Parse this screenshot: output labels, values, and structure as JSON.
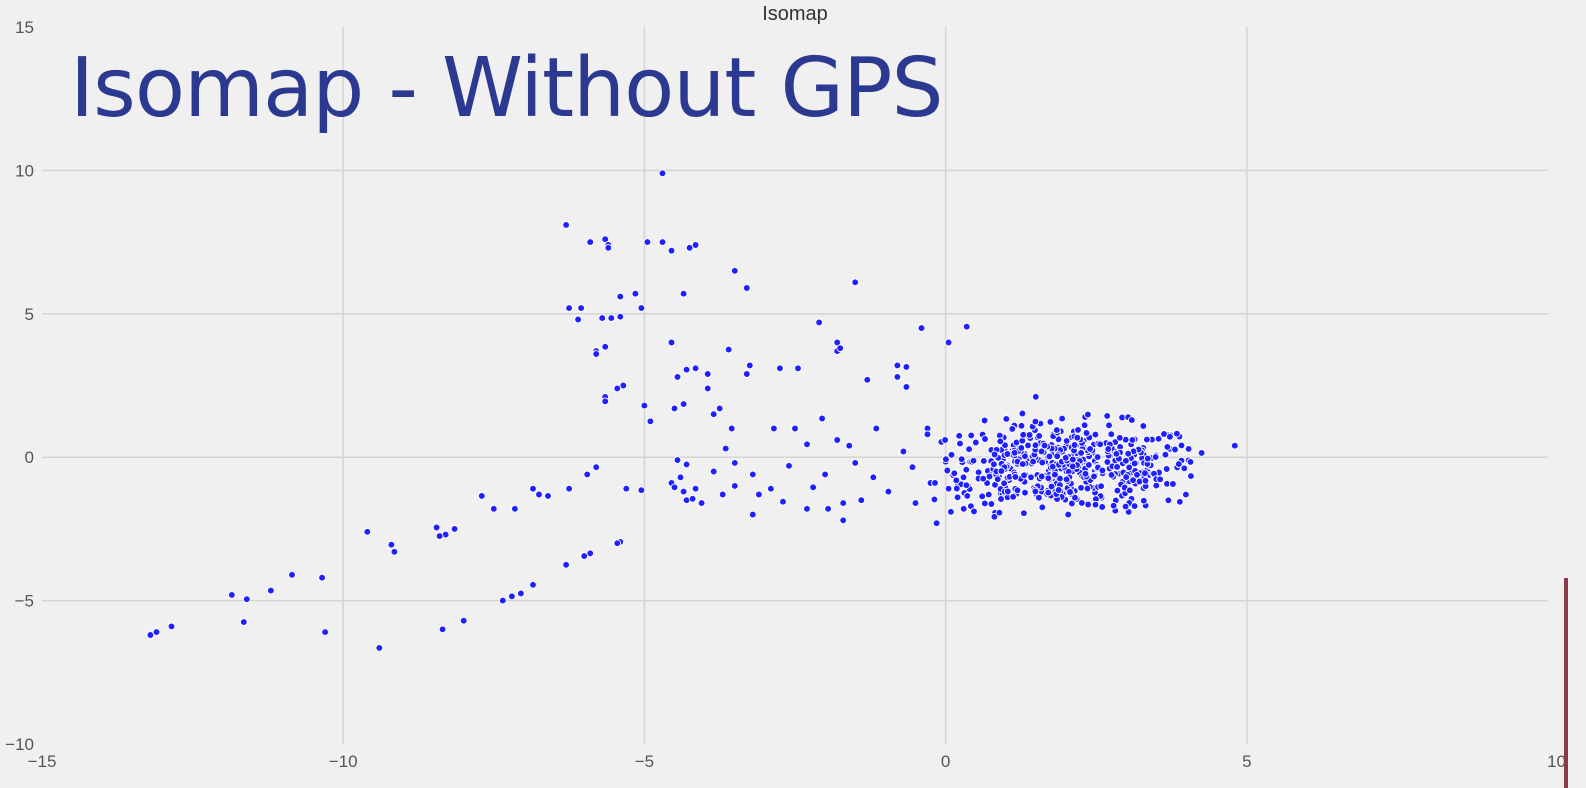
{
  "slide": {
    "title": "Isomap - Without GPS",
    "title_color": "#2b3990"
  },
  "colors": {
    "background": "#f0f0f0",
    "grid": "#d4d4d4",
    "point_fill": "#1f1fff",
    "point_edge": "#ffffff",
    "accent": "#8a3a4a"
  },
  "chart_data": {
    "type": "scatter",
    "title": "Isomap",
    "xlabel": "",
    "ylabel": "",
    "xlim": [
      -15,
      10
    ],
    "ylim": [
      -10,
      15
    ],
    "xticks": [
      -15,
      -10,
      -5,
      0,
      5,
      10
    ],
    "yticks": [
      -10,
      -5,
      0,
      5,
      10,
      15
    ],
    "grid": true,
    "outliers": [
      [
        -4.7,
        9.9
      ],
      [
        -6.3,
        8.1
      ],
      [
        -5.9,
        7.5
      ],
      [
        -5.65,
        7.6
      ],
      [
        -5.6,
        7.4
      ],
      [
        -5.6,
        7.3
      ],
      [
        -4.95,
        7.5
      ],
      [
        -4.7,
        7.5
      ],
      [
        -4.55,
        7.2
      ],
      [
        -4.25,
        7.3
      ],
      [
        -4.15,
        7.4
      ],
      [
        -3.5,
        6.5
      ],
      [
        -3.3,
        5.9
      ],
      [
        -1.5,
        6.1
      ],
      [
        -4.35,
        5.7
      ],
      [
        -5.15,
        5.7
      ],
      [
        -5.4,
        5.6
      ],
      [
        -5.05,
        5.2
      ],
      [
        -6.25,
        5.2
      ],
      [
        -6.05,
        5.2
      ],
      [
        -5.4,
        4.9
      ],
      [
        -5.7,
        4.85
      ],
      [
        -5.55,
        4.85
      ],
      [
        -6.1,
        4.8
      ],
      [
        -2.1,
        4.7
      ],
      [
        -0.4,
        4.5
      ],
      [
        0.35,
        4.55
      ],
      [
        0.05,
        4.0
      ],
      [
        -1.8,
        4.0
      ],
      [
        -1.8,
        3.7
      ],
      [
        -1.75,
        3.8
      ],
      [
        -5.65,
        3.85
      ],
      [
        -5.8,
        3.7
      ],
      [
        -5.8,
        3.6
      ],
      [
        -4.55,
        4.0
      ],
      [
        -3.6,
        3.75
      ],
      [
        -3.25,
        3.2
      ],
      [
        -3.3,
        2.9
      ],
      [
        -2.75,
        3.1
      ],
      [
        -2.45,
        3.1
      ],
      [
        -0.8,
        3.2
      ],
      [
        -0.65,
        3.15
      ],
      [
        -1.3,
        2.7
      ],
      [
        -5.35,
        2.5
      ],
      [
        -5.45,
        2.4
      ],
      [
        -5.65,
        2.1
      ],
      [
        -5.65,
        1.95
      ],
      [
        -5.0,
        1.8
      ],
      [
        -4.9,
        1.25
      ],
      [
        -5.8,
        -0.35
      ],
      [
        -5.95,
        -0.6
      ],
      [
        -5.3,
        -1.1
      ],
      [
        -5.05,
        -1.15
      ],
      [
        -6.25,
        -1.1
      ],
      [
        -6.75,
        -1.3
      ],
      [
        -6.6,
        -1.35
      ],
      [
        -6.85,
        -1.1
      ],
      [
        -7.15,
        -1.8
      ],
      [
        -7.7,
        -1.35
      ],
      [
        -7.5,
        -1.8
      ],
      [
        -8.15,
        -2.5
      ],
      [
        -8.3,
        -2.7
      ],
      [
        -8.45,
        -2.45
      ],
      [
        -8.4,
        -2.75
      ],
      [
        -9.6,
        -2.6
      ],
      [
        -9.2,
        -3.05
      ],
      [
        -9.15,
        -3.3
      ],
      [
        -5.4,
        -2.95
      ],
      [
        -5.45,
        -3.0
      ],
      [
        -5.9,
        -3.35
      ],
      [
        -6.0,
        -3.45
      ],
      [
        -6.3,
        -3.75
      ],
      [
        -6.85,
        -4.45
      ],
      [
        -7.05,
        -4.75
      ],
      [
        -7.2,
        -4.85
      ],
      [
        -7.35,
        -5.0
      ],
      [
        -10.85,
        -4.1
      ],
      [
        -10.35,
        -4.2
      ],
      [
        -11.2,
        -4.65
      ],
      [
        -11.85,
        -4.8
      ],
      [
        -11.6,
        -4.95
      ],
      [
        -11.65,
        -5.75
      ],
      [
        -10.3,
        -6.1
      ],
      [
        -8.35,
        -6.0
      ],
      [
        -8.0,
        -5.7
      ],
      [
        -9.4,
        -6.65
      ],
      [
        -12.85,
        -5.9
      ],
      [
        -13.2,
        -6.2
      ],
      [
        -13.1,
        -6.1
      ],
      [
        4.8,
        0.4
      ],
      [
        4.25,
        0.15
      ],
      [
        -0.15,
        -2.3
      ],
      [
        0.05,
        -1.1
      ],
      [
        0.3,
        -1.8
      ],
      [
        -0.5,
        -1.6
      ],
      [
        -1.7,
        -2.2
      ],
      [
        -2.3,
        -1.8
      ],
      [
        -3.2,
        -2.0
      ],
      [
        -4.3,
        -1.5
      ],
      [
        -4.55,
        -0.9
      ],
      [
        -4.5,
        -1.05
      ],
      [
        -4.4,
        -0.7
      ],
      [
        -4.35,
        -1.2
      ],
      [
        -4.45,
        -0.1
      ],
      [
        -4.3,
        -0.25
      ],
      [
        -4.2,
        -1.45
      ],
      [
        -4.15,
        -1.1
      ],
      [
        -4.05,
        -1.6
      ],
      [
        -4.5,
        1.7
      ],
      [
        -4.35,
        1.85
      ],
      [
        -4.45,
        2.8
      ],
      [
        -4.3,
        3.05
      ],
      [
        -4.15,
        3.1
      ],
      [
        -3.95,
        2.9
      ],
      [
        -3.75,
        1.7
      ],
      [
        -3.55,
        1.0
      ],
      [
        -3.5,
        -0.2
      ],
      [
        -3.7,
        -1.3
      ],
      [
        -2.85,
        1.0
      ],
      [
        -2.5,
        1.0
      ],
      [
        -2.3,
        0.45
      ],
      [
        -2.05,
        1.35
      ],
      [
        -1.8,
        0.6
      ],
      [
        -1.7,
        -1.6
      ],
      [
        -1.5,
        -0.2
      ],
      [
        -1.4,
        -1.5
      ],
      [
        -1.15,
        1.0
      ],
      [
        -0.8,
        2.8
      ],
      [
        -0.65,
        2.45
      ],
      [
        -0.3,
        1.0
      ],
      [
        -2.6,
        -0.3
      ],
      [
        -2.9,
        -1.1
      ],
      [
        -3.5,
        -1.0
      ],
      [
        -3.85,
        -0.5
      ],
      [
        -3.2,
        -0.6
      ],
      [
        -2.2,
        -1.05
      ],
      [
        -1.95,
        -1.8
      ],
      [
        -0.95,
        -1.2
      ],
      [
        -0.55,
        -0.35
      ],
      [
        -0.7,
        0.2
      ],
      [
        -0.3,
        0.8
      ],
      [
        -0.25,
        -0.9
      ],
      [
        -3.95,
        2.4
      ],
      [
        -3.85,
        1.5
      ],
      [
        -3.65,
        0.3
      ],
      [
        -3.1,
        -1.3
      ],
      [
        -2.7,
        -1.55
      ],
      [
        -2.0,
        -0.6
      ],
      [
        -1.6,
        0.4
      ],
      [
        -1.2,
        -0.7
      ]
    ],
    "cluster": {
      "cx": 2.0,
      "cy": -0.35,
      "sx": 1.15,
      "sy": 0.75,
      "xrange": [
        -0.2,
        4.1
      ],
      "yrange": [
        -2.1,
        2.7
      ]
    }
  }
}
